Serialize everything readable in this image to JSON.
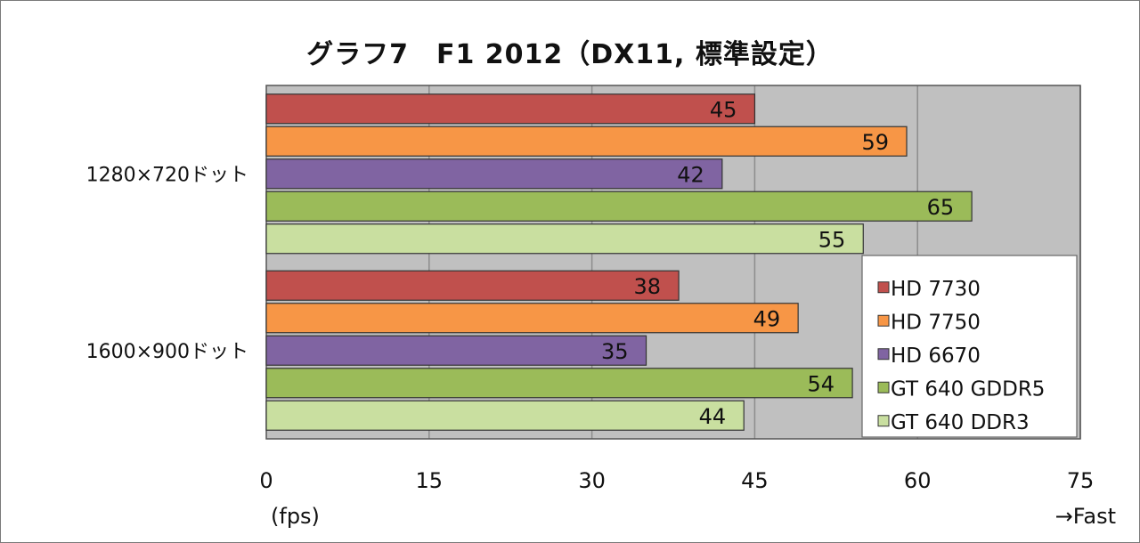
{
  "chart_data": {
    "type": "bar",
    "orientation": "horizontal",
    "title": "グラフ7　F1 2012（DX11, 標準設定）",
    "categories": [
      "1280×720ドット",
      "1600×900ドット"
    ],
    "series": [
      {
        "name": "HD 7730",
        "color": "#c0504d",
        "values": [
          45,
          38
        ]
      },
      {
        "name": "HD 7750",
        "color": "#f79646",
        "values": [
          59,
          49
        ]
      },
      {
        "name": "HD 6670",
        "color": "#8064a2",
        "values": [
          42,
          35
        ]
      },
      {
        "name": "GT 640 GDDR5",
        "color": "#9bbb59",
        "values": [
          65,
          54
        ]
      },
      {
        "name": "GT 640 DDR3",
        "color": "#c9dfa0",
        "values": [
          55,
          44
        ]
      }
    ],
    "xlim": [
      0,
      75
    ],
    "xticks": [
      0,
      15,
      30,
      45,
      60,
      75
    ],
    "xlabel": "(fps)",
    "xlabel_right": "→Fast",
    "grid": true,
    "legend_position": "bottom-right"
  }
}
